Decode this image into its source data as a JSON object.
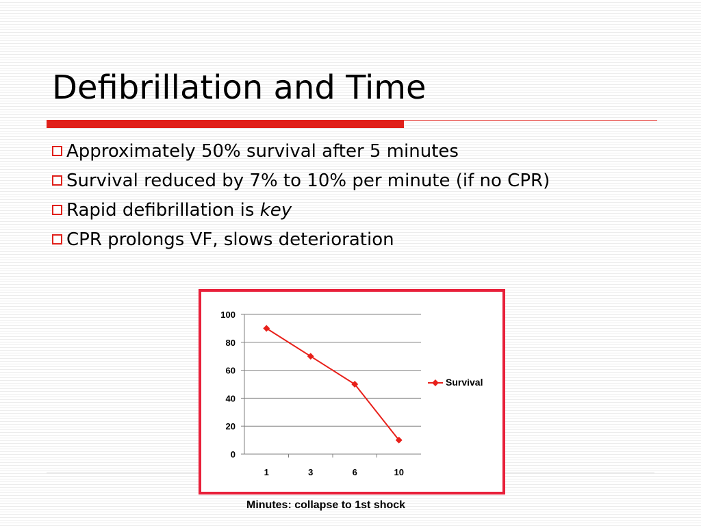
{
  "slide": {
    "title": "Defibrillation and Time",
    "bullets": [
      {
        "text": "Approximately 50% survival after 5 minutes"
      },
      {
        "text": "Survival reduced by 7% to 10% per minute (if no CPR)"
      },
      {
        "prefix": "Rapid defibrillation is ",
        "emphasis": "key"
      },
      {
        "text": "CPR prolongs VF, slows deterioration"
      }
    ],
    "accent_color": "#e0201a"
  },
  "chart_data": {
    "type": "line",
    "categories": [
      "1",
      "3",
      "6",
      "10"
    ],
    "series": [
      {
        "name": "Survival",
        "values": [
          90,
          70,
          50,
          10
        ],
        "color": "#e8201a"
      }
    ],
    "xlabel": "Minutes: collapse to 1st shock",
    "ylabel": "",
    "ylim": [
      0,
      100
    ],
    "yticks": [
      "0",
      "20",
      "40",
      "60",
      "80",
      "100"
    ],
    "grid": true,
    "legend": "right",
    "frame_color": "#e8203a"
  }
}
